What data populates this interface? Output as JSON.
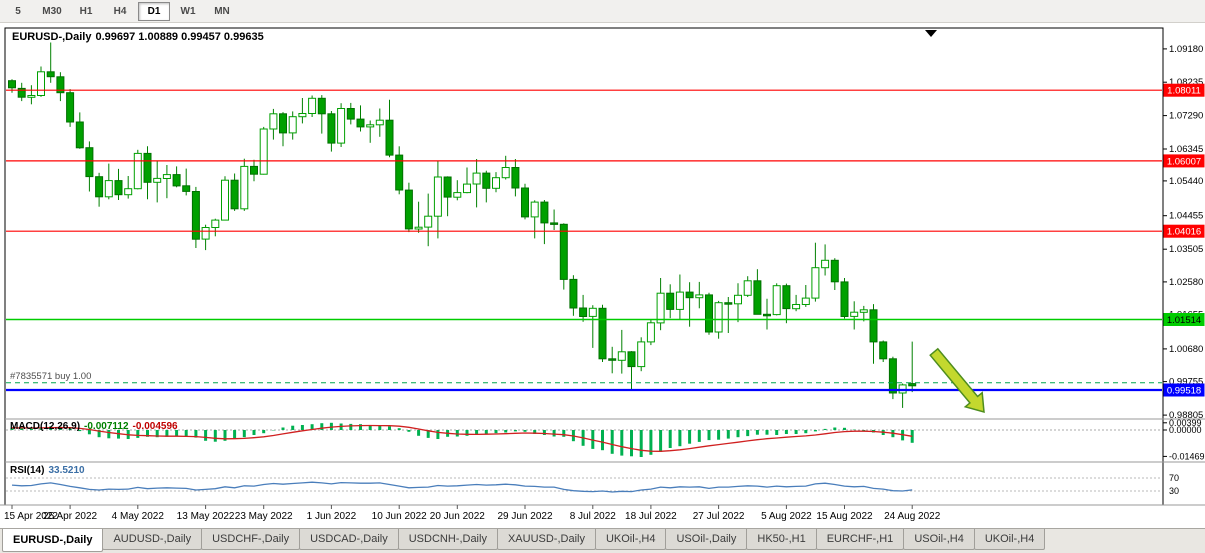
{
  "toolbar": {
    "buttons": [
      {
        "label": "5",
        "active": false
      },
      {
        "label": "M30",
        "active": false
      },
      {
        "label": "H1",
        "active": false
      },
      {
        "label": "H4",
        "active": false
      },
      {
        "label": "D1",
        "active": true
      },
      {
        "label": "W1",
        "active": false
      },
      {
        "label": "MN",
        "active": false
      }
    ]
  },
  "chart": {
    "title_symbol": "EURUSD-,Daily",
    "title_ohlc": "0.99697 1.00889 0.99457 0.99635",
    "order_label": "#7835571 buy 1.00",
    "order_price": 0.9972,
    "colors": {
      "bull_fill": "#ffffff",
      "bull_stroke": "#00a000",
      "bear_fill": "#00a000",
      "bear_stroke": "#007000",
      "wick": "#008000"
    },
    "hlines": [
      {
        "price": 1.08011,
        "color": "#ff0000",
        "badge": "1.08011",
        "badge_text": "#ffffff",
        "width": 1.2
      },
      {
        "price": 1.06007,
        "color": "#ff0000",
        "badge": "1.06007",
        "badge_text": "#ffffff",
        "width": 1.2
      },
      {
        "price": 1.04016,
        "color": "#ff0000",
        "badge": "1.04016",
        "badge_text": "#ffffff",
        "width": 1.2
      },
      {
        "price": 1.01514,
        "color": "#00cc00",
        "badge": "1.01514",
        "badge_text": "#000000",
        "width": 1.6
      },
      {
        "price": 0.99518,
        "color": "#0000ff",
        "badge": "0.99518",
        "badge_text": "#ffffff",
        "width": 2.2
      }
    ],
    "price_ticks": [
      "1.09180",
      "1.08235",
      "1.07290",
      "1.06345",
      "1.05440",
      "1.04455",
      "1.03505",
      "1.02580",
      "1.01655",
      "1.00680",
      "0.99755",
      "0.98805"
    ],
    "candles": [
      [
        1.0828,
        1.0832,
        1.0794,
        1.0808
      ],
      [
        1.0806,
        1.0822,
        1.077,
        1.0781
      ],
      [
        1.0781,
        1.0815,
        1.0761,
        1.0786
      ],
      [
        1.0786,
        1.0868,
        1.0782,
        1.0853
      ],
      [
        1.0853,
        1.0936,
        1.0822,
        1.0839
      ],
      [
        1.0839,
        1.0852,
        1.077,
        1.0794
      ],
      [
        1.0794,
        1.0804,
        1.0697,
        1.0711
      ],
      [
        1.0711,
        1.0738,
        1.0635,
        1.0638
      ],
      [
        1.0638,
        1.0656,
        1.0514,
        1.0556
      ],
      [
        1.0556,
        1.0567,
        1.0471,
        1.0499
      ],
      [
        1.0499,
        1.0593,
        1.0492,
        1.0545
      ],
      [
        1.0545,
        1.0578,
        1.049,
        1.0505
      ],
      [
        1.0505,
        1.0558,
        1.0494,
        1.0522
      ],
      [
        1.0522,
        1.0632,
        1.052,
        1.0622
      ],
      [
        1.0622,
        1.0642,
        1.0492,
        1.054
      ],
      [
        1.054,
        1.0599,
        1.0483,
        1.0551
      ],
      [
        1.0551,
        1.0589,
        1.0495,
        1.0562
      ],
      [
        1.0562,
        1.0585,
        1.0526,
        1.053
      ],
      [
        1.053,
        1.0579,
        1.0503,
        1.0514
      ],
      [
        1.0514,
        1.0527,
        1.0354,
        1.0379
      ],
      [
        1.0379,
        1.042,
        1.0348,
        1.0412
      ],
      [
        1.0412,
        1.0437,
        1.0387,
        1.0433
      ],
      [
        1.0433,
        1.0557,
        1.0433,
        1.0546
      ],
      [
        1.0546,
        1.0565,
        1.0459,
        1.0465
      ],
      [
        1.0465,
        1.0607,
        1.0459,
        1.0585
      ],
      [
        1.0585,
        1.0604,
        1.0543,
        1.0563
      ],
      [
        1.0563,
        1.0697,
        1.0562,
        1.0691
      ],
      [
        1.0691,
        1.0748,
        1.0661,
        1.0734
      ],
      [
        1.0734,
        1.0739,
        1.0642,
        1.068
      ],
      [
        1.068,
        1.0741,
        1.0661,
        1.0726
      ],
      [
        1.0726,
        1.0779,
        1.0707,
        1.0735
      ],
      [
        1.0735,
        1.0786,
        1.0725,
        1.0778
      ],
      [
        1.0778,
        1.0787,
        1.0678,
        1.0734
      ],
      [
        1.0734,
        1.0742,
        1.0627,
        1.0651
      ],
      [
        1.0651,
        1.0764,
        1.064,
        1.0749
      ],
      [
        1.0749,
        1.0765,
        1.0704,
        1.0719
      ],
      [
        1.0719,
        1.0758,
        1.0684,
        1.0697
      ],
      [
        1.0697,
        1.0715,
        1.0652,
        1.0703
      ],
      [
        1.0703,
        1.0749,
        1.0669,
        1.0716
      ],
      [
        1.0716,
        1.0774,
        1.0611,
        1.0617
      ],
      [
        1.0617,
        1.0642,
        1.0506,
        1.0518
      ],
      [
        1.0518,
        1.0539,
        1.0399,
        1.0408
      ],
      [
        1.0408,
        1.0485,
        1.0397,
        1.0413
      ],
      [
        1.0413,
        1.0508,
        1.0359,
        1.0444
      ],
      [
        1.0444,
        1.0601,
        1.0381,
        1.0555
      ],
      [
        1.0555,
        1.0557,
        1.0444,
        1.0498
      ],
      [
        1.0498,
        1.0546,
        1.0489,
        1.0511
      ],
      [
        1.0511,
        1.0582,
        1.0509,
        1.0535
      ],
      [
        1.0535,
        1.0606,
        1.0469,
        1.0566
      ],
      [
        1.0566,
        1.0573,
        1.0483,
        1.0523
      ],
      [
        1.0523,
        1.0569,
        1.0512,
        1.0553
      ],
      [
        1.0553,
        1.0615,
        1.0548,
        1.0582
      ],
      [
        1.0582,
        1.0606,
        1.05,
        1.0524
      ],
      [
        1.0524,
        1.0536,
        1.0435,
        1.0442
      ],
      [
        1.0442,
        1.0489,
        1.0381,
        1.0484
      ],
      [
        1.0484,
        1.049,
        1.0365,
        1.0425
      ],
      [
        1.0425,
        1.0463,
        1.0405,
        1.0421
      ],
      [
        1.0421,
        1.0424,
        1.0236,
        1.0265
      ],
      [
        1.0265,
        1.0277,
        1.0162,
        1.0184
      ],
      [
        1.0184,
        1.0221,
        1.0145,
        1.016
      ],
      [
        1.016,
        1.0192,
        1.0071,
        1.0183
      ],
      [
        1.0183,
        1.0193,
        1.0031,
        1.004
      ],
      [
        1.004,
        1.0074,
        0.9999,
        1.0036
      ],
      [
        1.0036,
        1.0122,
        0.9998,
        1.006
      ],
      [
        1.006,
        1.0062,
        0.9952,
        1.0018
      ],
      [
        1.0018,
        1.0101,
        1.0005,
        1.0088
      ],
      [
        1.0088,
        1.015,
        1.0079,
        1.0142
      ],
      [
        1.0142,
        1.0269,
        1.0121,
        1.0226
      ],
      [
        1.0226,
        1.0251,
        1.0155,
        1.018
      ],
      [
        1.018,
        1.0279,
        1.0151,
        1.0229
      ],
      [
        1.0229,
        1.0257,
        1.0131,
        1.0213
      ],
      [
        1.0213,
        1.0258,
        1.0183,
        1.0221
      ],
      [
        1.0221,
        1.0227,
        1.0108,
        1.0116
      ],
      [
        1.0116,
        1.0204,
        1.0097,
        1.0199
      ],
      [
        1.0199,
        1.0215,
        1.0113,
        1.0196
      ],
      [
        1.0196,
        1.0254,
        1.0144,
        1.022
      ],
      [
        1.022,
        1.0274,
        1.0215,
        1.0261
      ],
      [
        1.0261,
        1.0294,
        1.0166,
        1.0166
      ],
      [
        1.0166,
        1.021,
        1.0123,
        1.0165
      ],
      [
        1.0165,
        1.0254,
        1.0163,
        1.0247
      ],
      [
        1.0247,
        1.0253,
        1.0141,
        1.0182
      ],
      [
        1.0182,
        1.0221,
        1.0175,
        1.0194
      ],
      [
        1.0194,
        1.0249,
        1.0187,
        1.0212
      ],
      [
        1.0212,
        1.0369,
        1.0202,
        1.0298
      ],
      [
        1.0298,
        1.0364,
        1.0276,
        1.0319
      ],
      [
        1.0319,
        1.0325,
        1.0235,
        1.0258
      ],
      [
        1.0258,
        1.0269,
        1.0154,
        1.016
      ],
      [
        1.016,
        1.0203,
        1.0123,
        1.0172
      ],
      [
        1.0172,
        1.019,
        1.0146,
        1.0179
      ],
      [
        1.0179,
        1.0195,
        1.0026,
        1.0088
      ],
      [
        1.0088,
        1.0092,
        1.0031,
        1.004
      ],
      [
        1.004,
        1.0046,
        0.9926,
        0.9943
      ],
      [
        0.9943,
        0.997,
        0.9901,
        0.9966
      ],
      [
        0.99697,
        1.00889,
        0.99457,
        0.99635
      ]
    ],
    "arrow": {
      "from": [
        934,
        352
      ],
      "to": [
        984,
        412
      ],
      "fill": "#c3d82e",
      "stroke": "#4e8d1e"
    }
  },
  "macd": {
    "label": "MACD(12,26,9)",
    "value_main": "-0.007112",
    "value_signal": "-0.004596",
    "hist_color": "#00b050",
    "signal_color": "#d02020",
    "ticks": [
      {
        "label": "0.00399",
        "value": 0.00399
      },
      {
        "label": "0.00000",
        "value": 0
      },
      {
        "label": "-0.01469",
        "value": -0.01469
      }
    ],
    "hist": [
      0.0012,
      0.001,
      0.0008,
      0.0014,
      0.002,
      0.0018,
      0.0008,
      -0.0006,
      -0.0024,
      -0.004,
      -0.0046,
      -0.0048,
      -0.005,
      -0.0044,
      -0.0038,
      -0.004,
      -0.0038,
      -0.0036,
      -0.0038,
      -0.0042,
      -0.006,
      -0.0065,
      -0.006,
      -0.0045,
      -0.004,
      -0.0028,
      -0.0018,
      -0.0002,
      0.0014,
      0.0024,
      0.0028,
      0.0032,
      0.0038,
      0.004,
      0.0036,
      0.0034,
      0.0032,
      0.0028,
      0.0022,
      0.002,
      0.001,
      -0.001,
      -0.0032,
      -0.0044,
      -0.005,
      -0.0038,
      -0.0036,
      -0.0032,
      -0.0026,
      -0.002,
      -0.0018,
      -0.0014,
      -0.0008,
      -0.001,
      -0.0022,
      -0.0028,
      -0.0036,
      -0.0038,
      -0.0062,
      -0.0088,
      -0.0105,
      -0.0112,
      -0.0132,
      -0.0142,
      -0.0146,
      -0.015,
      -0.0138,
      -0.0122,
      -0.01,
      -0.009,
      -0.0076,
      -0.0066,
      -0.0056,
      -0.0054,
      -0.0048,
      -0.004,
      -0.0034,
      -0.0026,
      -0.0026,
      -0.0028,
      -0.0022,
      -0.0022,
      -0.0018,
      -0.0008,
      0.0006,
      0.0014,
      0.0012,
      0.0002,
      -0.0008,
      -0.0014,
      -0.0028,
      -0.004,
      -0.0058,
      -0.0071
    ]
  },
  "rsi": {
    "label": "RSI(14)",
    "value": "33.5210",
    "line_color": "#4a7ebb",
    "levels": [
      {
        "label": "70",
        "value": 70
      },
      {
        "label": "30",
        "value": 30
      }
    ],
    "values": [
      48,
      46,
      47,
      52,
      55,
      50,
      44,
      40,
      35,
      33,
      36,
      35,
      36,
      41,
      37,
      39,
      40,
      39,
      38,
      33,
      35,
      37,
      43,
      40,
      46,
      45,
      50,
      53,
      51,
      53,
      55,
      57,
      55,
      52,
      56,
      55,
      54,
      54,
      55,
      50,
      45,
      40,
      41,
      42,
      47,
      45,
      46,
      48,
      50,
      48,
      49,
      51,
      49,
      45,
      44,
      42,
      42,
      35,
      31,
      29,
      28,
      30,
      27,
      29,
      28,
      33,
      36,
      42,
      40,
      43,
      42,
      43,
      38,
      42,
      42,
      44,
      46,
      45,
      42,
      45,
      43,
      44,
      45,
      52,
      54,
      50,
      45,
      43,
      44,
      38,
      36,
      31,
      30,
      33.5
    ]
  },
  "dates": [
    {
      "label": "15 Apr 2022",
      "i": 0
    },
    {
      "label": "25 Apr 2022",
      "i": 6
    },
    {
      "label": "4 May 2022",
      "i": 13
    },
    {
      "label": "13 May 2022",
      "i": 20
    },
    {
      "label": "23 May 2022",
      "i": 26
    },
    {
      "label": "1 Jun 2022",
      "i": 33
    },
    {
      "label": "10 Jun 2022",
      "i": 40
    },
    {
      "label": "20 Jun 2022",
      "i": 46
    },
    {
      "label": "29 Jun 2022",
      "i": 53
    },
    {
      "label": "8 Jul 2022",
      "i": 60
    },
    {
      "label": "18 Jul 2022",
      "i": 66
    },
    {
      "label": "27 Jul 2022",
      "i": 73
    },
    {
      "label": "5 Aug 2022",
      "i": 80
    },
    {
      "label": "15 Aug 2022",
      "i": 86
    },
    {
      "label": "24 Aug 2022",
      "i": 93
    }
  ],
  "tabs": {
    "items": [
      {
        "label": "EURUSD-,Daily",
        "active": true
      },
      {
        "label": "AUDUSD-,Daily",
        "active": false
      },
      {
        "label": "USDCHF-,Daily",
        "active": false
      },
      {
        "label": "USDCAD-,Daily",
        "active": false
      },
      {
        "label": "USDCNH-,Daily",
        "active": false
      },
      {
        "label": "XAUUSD-,Daily",
        "active": false
      },
      {
        "label": "UKOil-,H4",
        "active": false
      },
      {
        "label": "USOil-,Daily",
        "active": false
      },
      {
        "label": "HK50-,H1",
        "active": false
      },
      {
        "label": "EURCHF-,H1",
        "active": false
      },
      {
        "label": "USOil-,H4",
        "active": false
      },
      {
        "label": "UKOil-,H4",
        "active": false
      }
    ]
  }
}
